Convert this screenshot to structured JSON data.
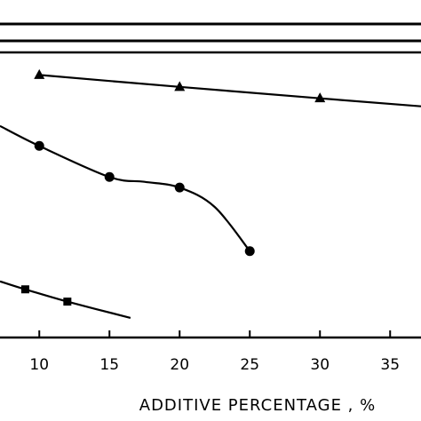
{
  "chart_data": {
    "type": "line",
    "xlabel": "ADDITIVE PERCENTAGE , %",
    "ylabel": "",
    "title": "",
    "x_ticks": [
      10,
      15,
      20,
      25,
      30,
      35
    ],
    "xlim": [
      7.2,
      37.2
    ],
    "ylim": [
      0,
      100
    ],
    "grid": false,
    "legend": "none",
    "series": [
      {
        "marker": "triangle",
        "points": [
          [
            10,
            92.1
          ],
          [
            20,
            87.9
          ],
          [
            30,
            83.9
          ]
        ],
        "curve": [
          [
            10,
            92.1
          ],
          [
            20,
            87.9
          ],
          [
            30,
            83.9
          ],
          [
            37.2,
            81.1
          ]
        ]
      },
      {
        "marker": "circle",
        "points": [
          [
            10,
            67.2
          ],
          [
            15,
            56.3
          ],
          [
            20,
            52.6
          ],
          [
            25,
            30.3
          ]
        ],
        "curve": [
          [
            7.2,
            74.2
          ],
          [
            10,
            67.2
          ],
          [
            15,
            56.3
          ],
          [
            17.5,
            54.6
          ],
          [
            20,
            52.6
          ],
          [
            22.5,
            45.8
          ],
          [
            25,
            30.3
          ]
        ]
      },
      {
        "marker": "square",
        "points": [
          [
            9,
            16.9
          ],
          [
            12,
            12.6
          ]
        ],
        "curve": [
          [
            7.2,
            19.7
          ],
          [
            9,
            16.9
          ],
          [
            12,
            12.6
          ],
          [
            16.5,
            6.9
          ]
        ]
      }
    ],
    "colors": {
      "line": "#000000",
      "background": "#ffffff"
    }
  }
}
